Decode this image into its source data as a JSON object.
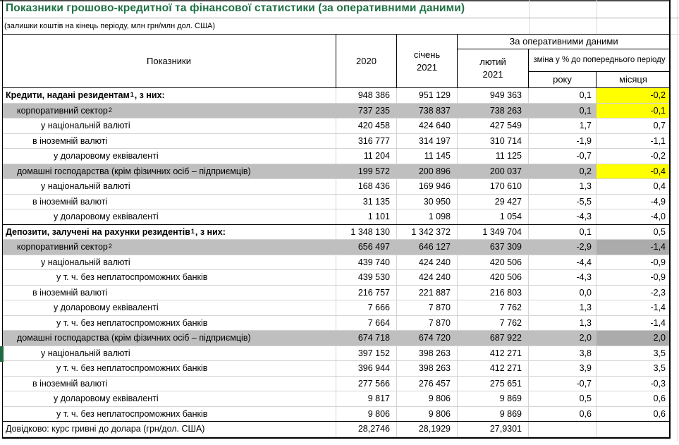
{
  "title": "Показники грошово-кредитної та фінансової статистики (за оперативними даними)",
  "subtitle": "(залишки коштів на кінець періоду, млн грн/млн дол. США)",
  "header": {
    "indicators": "Показники",
    "col_2020": "2020",
    "jan_line1": "січень",
    "jan_line2": "2021",
    "group_operational": "За оперативними даними",
    "feb_line1": "лютий",
    "feb_line2": "2021",
    "change_label": "зміна у % до попереднього періоду",
    "col_year": "року",
    "col_month": "місяця"
  },
  "colors": {
    "title_green": "#1f7145",
    "row_gray": "#bfbfbf",
    "highlight_yellow": "#ffff00",
    "highlight_darkgray": "#ababab",
    "marker_green": "#1e6b40",
    "gridline": "#d4d4d4"
  },
  "rows": [
    {
      "label": "Кредити, надані резидентам",
      "sup": "1",
      "suffix": ", з них:",
      "bold": true,
      "indent": 5,
      "bg": "white",
      "month_bg": "yellow",
      "values": [
        "948 386",
        "951 129",
        "949 363",
        "0,1",
        "-0,2"
      ]
    },
    {
      "label": "корпоративний сектор",
      "sup": "2",
      "bold": false,
      "indent": 21,
      "bg": "gray",
      "month_bg": "yellow",
      "values": [
        "737 235",
        "738 837",
        "738 263",
        "0,1",
        "-0,1"
      ]
    },
    {
      "label": "у національній валюті",
      "bold": false,
      "indent": 55,
      "bg": "white",
      "values": [
        "420 458",
        "424 640",
        "427 549",
        "1,7",
        "0,7"
      ]
    },
    {
      "label": "в іноземній валюті",
      "bold": false,
      "indent": 43,
      "bg": "white",
      "values": [
        "316 777",
        "314 197",
        "310 714",
        "-1,9",
        "-1,1"
      ]
    },
    {
      "label": "у доларовому еквіваленті",
      "bold": false,
      "indent": 73,
      "bg": "white",
      "values": [
        "11 204",
        "11 145",
        "11 125",
        "-0,7",
        "-0,2"
      ]
    },
    {
      "label": "домашні господарства (крім фізичних осіб – підприємців)",
      "bold": false,
      "indent": 21,
      "bg": "gray",
      "month_bg": "yellow",
      "values": [
        "199 572",
        "200 896",
        "200 037",
        "0,2",
        "-0,4"
      ]
    },
    {
      "label": "у національній валюті",
      "bold": false,
      "indent": 55,
      "bg": "white",
      "values": [
        "168 436",
        "169 946",
        "170 610",
        "1,3",
        "0,4"
      ]
    },
    {
      "label": "в іноземній валюті",
      "bold": false,
      "indent": 43,
      "bg": "white",
      "values": [
        "31 135",
        "30 950",
        "29 427",
        "-5,5",
        "-4,9"
      ]
    },
    {
      "label": "у доларовому еквіваленті",
      "bold": false,
      "indent": 73,
      "bg": "white",
      "section_end": true,
      "values": [
        "1 101",
        "1 098",
        "1 054",
        "-4,3",
        "-4,0"
      ]
    },
    {
      "label": "Депозити, залучені на рахунки резидентів",
      "sup": "1",
      "suffix": ", з них:",
      "bold": true,
      "indent": 5,
      "bg": "white",
      "values": [
        "1 348 130",
        "1 342 372",
        "1 349 704",
        "0,1",
        "0,5"
      ]
    },
    {
      "label": "корпоративний сектор",
      "sup": "2",
      "bold": false,
      "indent": 21,
      "bg": "gray",
      "month_bg": "darkgray",
      "values": [
        "656 497",
        "646 127",
        "637 309",
        "-2,9",
        "-1,4"
      ]
    },
    {
      "label": "у національній валюті",
      "bold": false,
      "indent": 55,
      "bg": "white",
      "values": [
        "439 740",
        "424 240",
        "420 506",
        "-4,4",
        "-0,9"
      ]
    },
    {
      "label": "у т. ч. без неплатоспроможних банків",
      "bold": false,
      "indent": 77,
      "bg": "white",
      "values": [
        "439 530",
        "424 240",
        "420 506",
        "-4,3",
        "-0,9"
      ]
    },
    {
      "label": "в іноземній валюті",
      "bold": false,
      "indent": 43,
      "bg": "white",
      "values": [
        "216 757",
        "221 887",
        "216 803",
        "0,0",
        "-2,3"
      ]
    },
    {
      "label": "у доларовому еквіваленті",
      "bold": false,
      "indent": 73,
      "bg": "white",
      "values": [
        "7 666",
        "7 870",
        "7 762",
        "1,3",
        "-1,4"
      ]
    },
    {
      "label": "у т. ч. без неплатоспроможних банків",
      "bold": false,
      "indent": 77,
      "bg": "white",
      "values": [
        "7 664",
        "7 870",
        "7 762",
        "1,3",
        "-1,4"
      ]
    },
    {
      "label": "домашні господарства (крім фізичних осіб – підприємців)",
      "bold": false,
      "indent": 21,
      "bg": "gray",
      "month_bg": "darkgray",
      "values": [
        "674 718",
        "674 720",
        "687 922",
        "2,0",
        "2,0"
      ]
    },
    {
      "label": "у національній валюті",
      "bold": false,
      "indent": 55,
      "bg": "white",
      "values": [
        "397 152",
        "398 263",
        "412 271",
        "3,8",
        "3,5"
      ]
    },
    {
      "label": "у т. ч. без неплатоспроможних банків",
      "bold": false,
      "indent": 77,
      "bg": "white",
      "values": [
        "396 944",
        "398 263",
        "412 271",
        "3,9",
        "3,5"
      ]
    },
    {
      "label": "в іноземній валюті",
      "bold": false,
      "indent": 43,
      "bg": "white",
      "values": [
        "277 566",
        "276 457",
        "275 651",
        "-0,7",
        "-0,3"
      ]
    },
    {
      "label": "у доларовому еквіваленті",
      "bold": false,
      "indent": 73,
      "bg": "white",
      "values": [
        "9 817",
        "9 806",
        "9 869",
        "0,5",
        "0,6"
      ]
    },
    {
      "label": "у т. ч. без неплатоспроможних банків",
      "bold": false,
      "indent": 77,
      "bg": "white",
      "section_end": true,
      "values": [
        "9 806",
        "9 806",
        "9 869",
        "0,6",
        "0,6"
      ]
    },
    {
      "label": "Довідково: курс гривні до долара (грн/дол. США)",
      "bold": false,
      "indent": 5,
      "bg": "white",
      "values": [
        "28,2746",
        "28,1929",
        "27,9301",
        "",
        ""
      ]
    }
  ]
}
